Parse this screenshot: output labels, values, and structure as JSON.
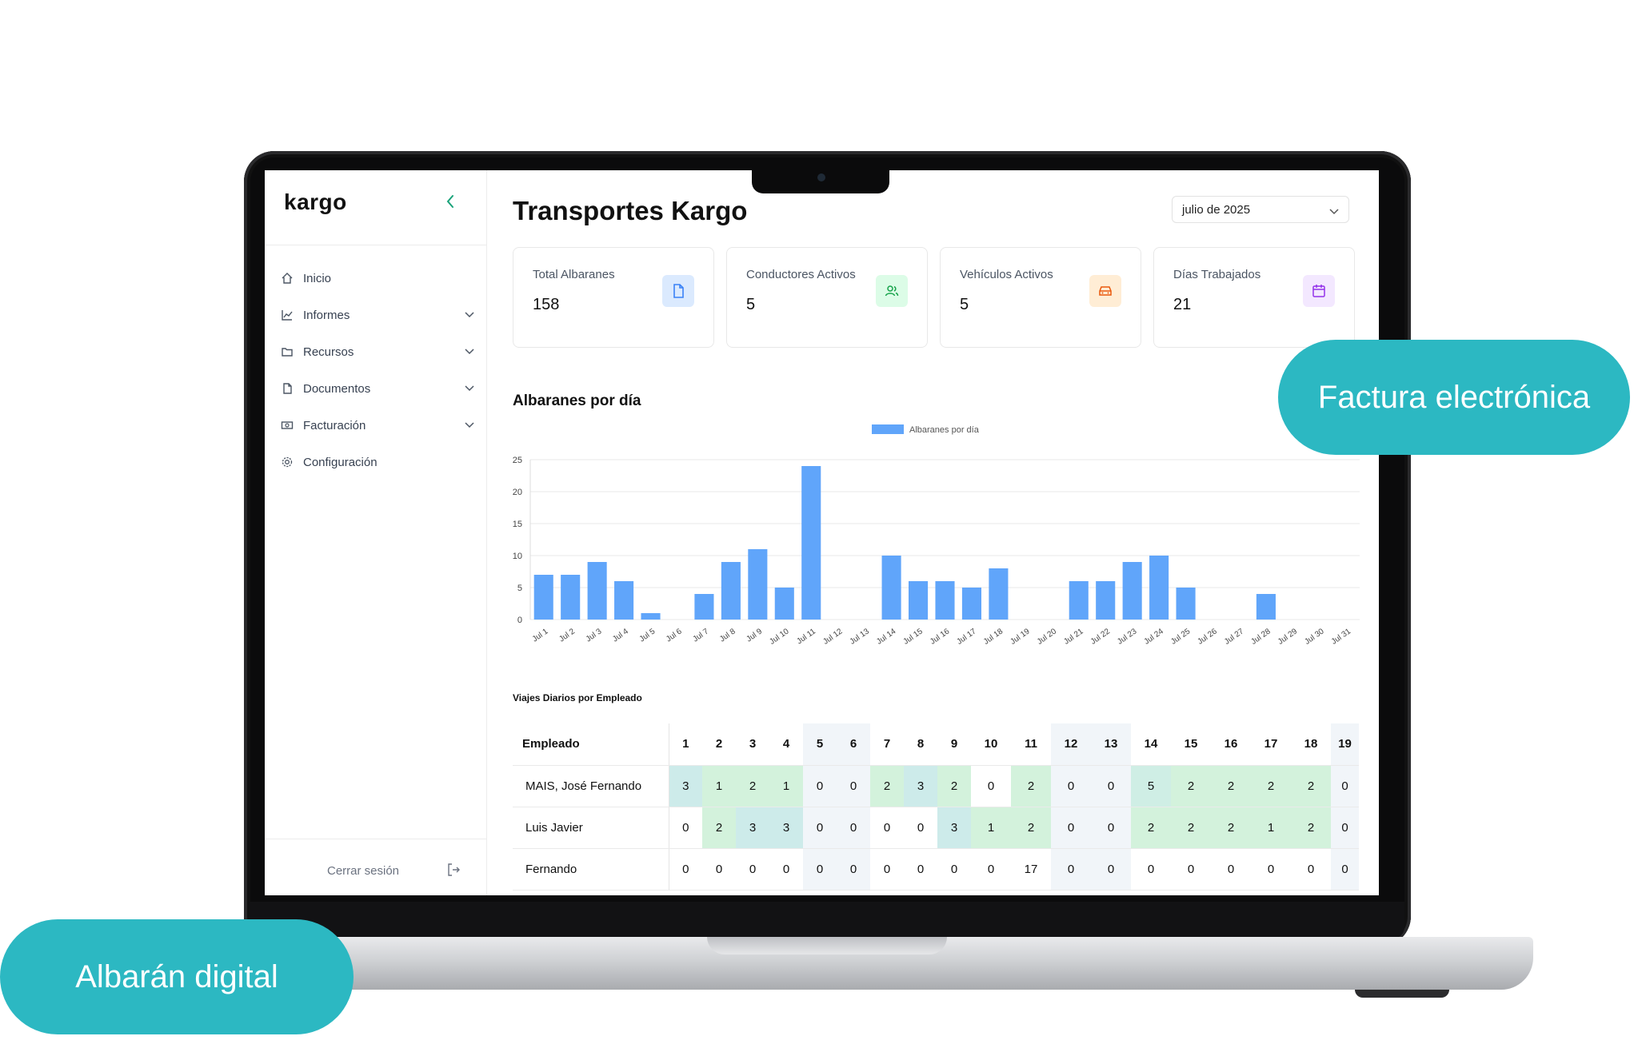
{
  "sidebar": {
    "logo": "kargo",
    "items": [
      {
        "label": "Inicio",
        "icon": "home-icon",
        "expandable": false
      },
      {
        "label": "Informes",
        "icon": "chart-line-icon",
        "expandable": true
      },
      {
        "label": "Recursos",
        "icon": "folder-icon",
        "expandable": true
      },
      {
        "label": "Documentos",
        "icon": "file-icon",
        "expandable": true
      },
      {
        "label": "Facturación",
        "icon": "cash-icon",
        "expandable": true
      },
      {
        "label": "Configuración",
        "icon": "gear-icon",
        "expandable": false
      }
    ],
    "logout_label": "Cerrar sesión"
  },
  "header": {
    "title": "Transportes Kargo",
    "month_selected": "julio de 2025"
  },
  "stats": [
    {
      "label": "Total Albaranes",
      "value": "158",
      "icon": "document-icon",
      "color": "#3b82f6",
      "bg": "#dbeafe"
    },
    {
      "label": "Conductores Activos",
      "value": "5",
      "icon": "users-icon",
      "color": "#16a34a",
      "bg": "#dcfce7"
    },
    {
      "label": "Vehículos Activos",
      "value": "5",
      "icon": "car-icon",
      "color": "#ea580c",
      "bg": "#ffedd5"
    },
    {
      "label": "Días Trabajados",
      "value": "21",
      "icon": "calendar-icon",
      "color": "#9333ea",
      "bg": "#f3e8ff"
    }
  ],
  "chart_data": {
    "type": "bar",
    "title": "Albaranes por día",
    "categories": [
      "Jul 1",
      "Jul 2",
      "Jul 3",
      "Jul 4",
      "Jul 5",
      "Jul 6",
      "Jul 7",
      "Jul 8",
      "Jul 9",
      "Jul 10",
      "Jul 11",
      "Jul 12",
      "Jul 13",
      "Jul 14",
      "Jul 15",
      "Jul 16",
      "Jul 17",
      "Jul 18",
      "Jul 19",
      "Jul 20",
      "Jul 21",
      "Jul 22",
      "Jul 23",
      "Jul 24",
      "Jul 25",
      "Jul 26",
      "Jul 27",
      "Jul 28",
      "Jul 29",
      "Jul 30",
      "Jul 31"
    ],
    "series": [
      {
        "name": "Albaranes por día",
        "color": "#60a5fa",
        "values": [
          7,
          7,
          9,
          6,
          1,
          0,
          4,
          9,
          11,
          5,
          24,
          0,
          0,
          10,
          6,
          6,
          5,
          8,
          0,
          0,
          6,
          6,
          9,
          10,
          5,
          0,
          0,
          4,
          0,
          0,
          0
        ]
      }
    ],
    "yticks": [
      0,
      5,
      10,
      15,
      20,
      25
    ],
    "ylim": [
      0,
      25
    ],
    "legend": "top-center",
    "grid": true
  },
  "table": {
    "title": "Viajes Diarios por Empleado",
    "header_label": "Empleado",
    "days": [
      "1",
      "2",
      "3",
      "4",
      "5",
      "6",
      "7",
      "8",
      "9",
      "10",
      "11",
      "12",
      "13",
      "14",
      "15",
      "16",
      "17",
      "18",
      "19"
    ],
    "weekend_days": [
      "5",
      "6",
      "12",
      "13",
      "19"
    ],
    "rows": [
      {
        "name": "MAIS, José Fernando",
        "values": [
          "3",
          "1",
          "2",
          "1",
          "0",
          "0",
          "2",
          "3",
          "2",
          "0",
          "2",
          "0",
          "0",
          "5",
          "2",
          "2",
          "2",
          "2",
          "0"
        ]
      },
      {
        "name": "Luis Javier",
        "values": [
          "0",
          "2",
          "3",
          "3",
          "0",
          "0",
          "0",
          "0",
          "3",
          "1",
          "2",
          "0",
          "0",
          "2",
          "2",
          "2",
          "1",
          "2",
          "0"
        ]
      },
      {
        "name": "Fernando",
        "values": [
          "0",
          "0",
          "0",
          "0",
          "0",
          "0",
          "0",
          "0",
          "0",
          "0",
          "17",
          "0",
          "0",
          "0",
          "0",
          "0",
          "0",
          "0",
          "0"
        ]
      }
    ]
  },
  "callouts": {
    "right": "Factura electrónica",
    "left": "Albarán digital"
  }
}
